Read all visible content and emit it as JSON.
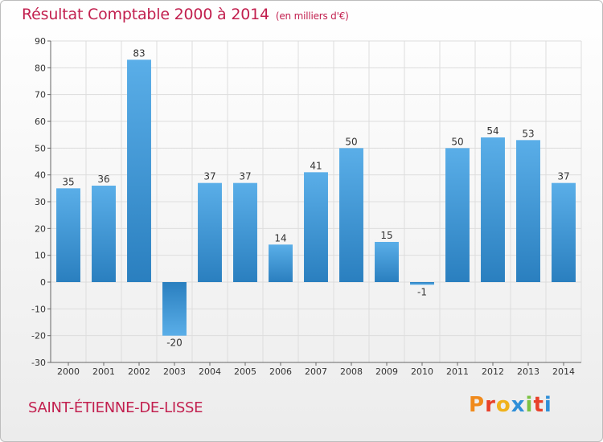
{
  "header": {
    "title": "Résultat Comptable 2000 à 2014",
    "subtitle": "(en milliers d'€)"
  },
  "footer": {
    "town": "SAINT-ÉTIENNE-DE-LISSE",
    "logo_text": "Proxiti"
  },
  "colors": {
    "accent": "#c2204f",
    "bar_light": "#5aaee8",
    "bar_dark": "#2a7fbf",
    "grid": "#dddddd",
    "logo_letters": [
      "#f08a1c",
      "#e8412a",
      "#f0b21c",
      "#2f8fd8",
      "#7cc242",
      "#e8412a",
      "#2f8fd8"
    ]
  },
  "chart_data": {
    "type": "bar",
    "title": "Résultat Comptable 2000 à 2014",
    "subtitle": "(en milliers d'€)",
    "categories": [
      "2000",
      "2001",
      "2002",
      "2003",
      "2004",
      "2005",
      "2006",
      "2007",
      "2008",
      "2009",
      "2010",
      "2011",
      "2012",
      "2013",
      "2014"
    ],
    "values": [
      35,
      36,
      83,
      -20,
      37,
      37,
      14,
      41,
      50,
      15,
      -1,
      50,
      54,
      53,
      37
    ],
    "ylim": [
      -30,
      90
    ],
    "yticks": [
      -30,
      -20,
      -10,
      0,
      10,
      20,
      30,
      40,
      50,
      60,
      70,
      80,
      90
    ],
    "grid": true,
    "xlabel": "",
    "ylabel": ""
  }
}
